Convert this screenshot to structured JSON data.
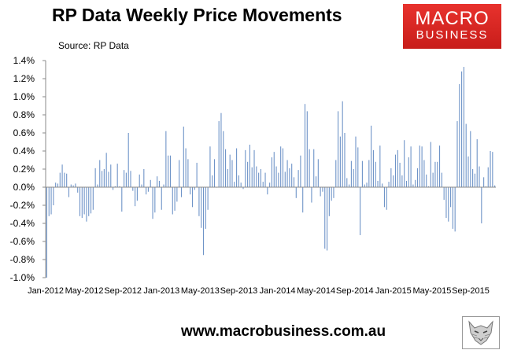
{
  "header": {
    "title": "RP Data Weekly Price Movements",
    "source": "Source: RP Data"
  },
  "logo": {
    "line1": "MACRO",
    "line2": "BUSINESS"
  },
  "footer": {
    "url": "www.macrobusiness.com.au"
  },
  "icons": {
    "watermark": "wolf-logo-icon"
  },
  "colors": {
    "bar": "#6f94c8",
    "axis": "#888888",
    "logo": "#e0282a"
  },
  "chart_data": {
    "type": "bar",
    "ylabel": "",
    "xlabel": "",
    "ylim": [
      -1.0,
      1.4
    ],
    "yticks": [
      "1.4%",
      "1.2%",
      "1.0%",
      "0.8%",
      "0.6%",
      "0.4%",
      "0.2%",
      "0.0%",
      "-0.2%",
      "-0.4%",
      "-0.6%",
      "-0.8%",
      "-1.0%"
    ],
    "xticks": [
      "Jan-2012",
      "May-2012",
      "Sep-2012",
      "Jan-2013",
      "May-2013",
      "Sep-2013",
      "Jan-2014",
      "May-2014",
      "Sep-2014",
      "Jan-2015",
      "May-2015",
      "Sep-2015"
    ],
    "grid": false,
    "series": [
      {
        "values": [
          -1.0,
          -0.32,
          -0.3,
          -0.2,
          0.05,
          0.04,
          0.16,
          0.25,
          0.16,
          0.15,
          -0.11,
          0.03,
          0.02,
          0.04,
          -0.06,
          -0.32,
          -0.34,
          -0.3,
          -0.38,
          -0.32,
          -0.29,
          -0.25,
          0.21,
          0.03,
          0.3,
          0.18,
          0.2,
          0.38,
          0.17,
          0.25,
          -0.03,
          0.01,
          0.26,
          0.01,
          -0.27,
          0.19,
          0.16,
          0.6,
          0.18,
          -0.04,
          -0.21,
          -0.15,
          0.14,
          0.03,
          0.2,
          -0.08,
          -0.05,
          0.08,
          -0.35,
          -0.28,
          0.12,
          0.07,
          -0.25,
          0.03,
          0.62,
          0.35,
          0.35,
          -0.3,
          -0.26,
          -0.16,
          0.3,
          -0.11,
          0.67,
          0.43,
          0.31,
          -0.08,
          -0.22,
          -0.03,
          0.27,
          -0.32,
          -0.45,
          -0.75,
          -0.46,
          -0.25,
          0.45,
          0.13,
          0.31,
          0.0,
          0.73,
          0.82,
          0.62,
          0.42,
          0.2,
          0.36,
          0.3,
          0.06,
          0.43,
          0.13,
          0.05,
          -0.02,
          0.41,
          0.28,
          0.47,
          0.22,
          0.41,
          0.23,
          0.16,
          0.2,
          0.06,
          0.16,
          -0.08,
          0.05,
          0.33,
          0.39,
          0.23,
          0.16,
          0.45,
          0.43,
          0.17,
          0.3,
          0.21,
          0.26,
          0.11,
          -0.12,
          0.19,
          0.35,
          -0.28,
          0.92,
          0.84,
          0.42,
          -0.17,
          0.42,
          0.12,
          0.31,
          -0.1,
          -0.05,
          -0.68,
          -0.7,
          -0.32,
          -0.15,
          -0.12,
          0.3,
          0.84,
          0.56,
          0.95,
          0.6,
          0.1,
          0.03,
          0.29,
          0.2,
          0.56,
          0.44,
          -0.53,
          0.29,
          0.03,
          0.05,
          0.3,
          0.68,
          0.41,
          0.28,
          0.07,
          0.46,
          0.04,
          -0.22,
          -0.25,
          0.06,
          0.21,
          0.13,
          0.36,
          0.41,
          0.27,
          0.13,
          0.52,
          0.07,
          0.33,
          0.45,
          0.03,
          0.08,
          0.21,
          0.46,
          0.45,
          0.3,
          0.14,
          0.01,
          0.5,
          0.16,
          0.28,
          0.28,
          0.46,
          0.16,
          -0.14,
          -0.34,
          -0.38,
          -0.22,
          -0.46,
          -0.49,
          0.73,
          1.14,
          1.28,
          1.33,
          0.7,
          0.34,
          0.62,
          0.2,
          0.15,
          0.53,
          0.23,
          -0.4,
          0.11,
          0.01,
          0.22,
          0.4,
          0.39,
          0.02
        ]
      }
    ]
  }
}
